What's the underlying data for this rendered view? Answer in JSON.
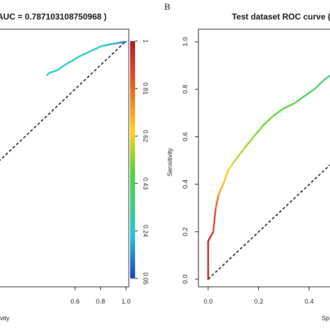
{
  "chart_data": [
    {
      "type": "line",
      "title": "AUC =  0.787103108750968 )",
      "xlabel": "ivity",
      "ylabel": "",
      "xlim": [
        0,
        1
      ],
      "ylim": [
        0,
        1
      ],
      "xticks": [
        "0.6",
        "0.8",
        "1.0"
      ],
      "reference_line": "diagonal dashed",
      "series": [
        {
          "x": [
            0.38,
            0.4,
            0.43,
            0.46,
            0.5,
            0.54,
            0.58,
            0.62,
            0.66,
            0.7,
            0.74,
            0.78,
            0.8,
            0.84,
            0.88,
            0.92,
            0.96,
            1.0
          ],
          "y": [
            0.86,
            0.87,
            0.875,
            0.88,
            0.895,
            0.91,
            0.92,
            0.935,
            0.945,
            0.955,
            0.965,
            0.975,
            0.98,
            0.985,
            0.99,
            0.993,
            0.997,
            1.0
          ],
          "thresholds": [
            0.22,
            0.22,
            0.22,
            0.22,
            0.22,
            0.22,
            0.22,
            0.22,
            0.22,
            0.22,
            0.2,
            0.19,
            0.18,
            0.16,
            0.14,
            0.12,
            0.09,
            0.06
          ]
        }
      ],
      "colorbar": {
        "ticks": [
          "1",
          "0.81",
          "0.62",
          "0.43",
          "0.24",
          "0.05"
        ],
        "values": [
          1,
          0.81,
          0.62,
          0.43,
          0.24,
          0.05
        ],
        "colors": [
          "#b2182b",
          "#e8651f",
          "#ffd21e",
          "#57d135",
          "#22c7d6",
          "#1f3db8"
        ]
      }
    },
    {
      "type": "line",
      "title": "Test dataset ROC curve (",
      "xlabel": "Sp",
      "ylabel": "Sensitivity",
      "xlim": [
        -0.05,
        0.5
      ],
      "ylim": [
        -0.05,
        1.05
      ],
      "xticks": [
        "0.0",
        "0.2",
        "0.4"
      ],
      "yticks": [
        "0.0",
        "0.2",
        "0.4",
        "0.6",
        "0.8",
        "1.0"
      ],
      "reference_line": "diagonal dashed",
      "series": [
        {
          "x": [
            0.0,
            0.0,
            0.01,
            0.02,
            0.03,
            0.04,
            0.05,
            0.06,
            0.08,
            0.1,
            0.12,
            0.15,
            0.18,
            0.22,
            0.26,
            0.3,
            0.34,
            0.38,
            0.42,
            0.46,
            0.5
          ],
          "y": [
            0.0,
            0.16,
            0.18,
            0.2,
            0.3,
            0.35,
            0.38,
            0.4,
            0.46,
            0.49,
            0.52,
            0.56,
            0.6,
            0.65,
            0.69,
            0.72,
            0.74,
            0.77,
            0.8,
            0.84,
            0.87
          ],
          "thresholds": [
            0.99,
            0.97,
            0.93,
            0.88,
            0.8,
            0.72,
            0.68,
            0.65,
            0.6,
            0.56,
            0.54,
            0.51,
            0.49,
            0.47,
            0.45,
            0.43,
            0.41,
            0.39,
            0.37,
            0.35,
            0.33
          ]
        }
      ]
    }
  ],
  "panel_labels": [
    "B"
  ]
}
